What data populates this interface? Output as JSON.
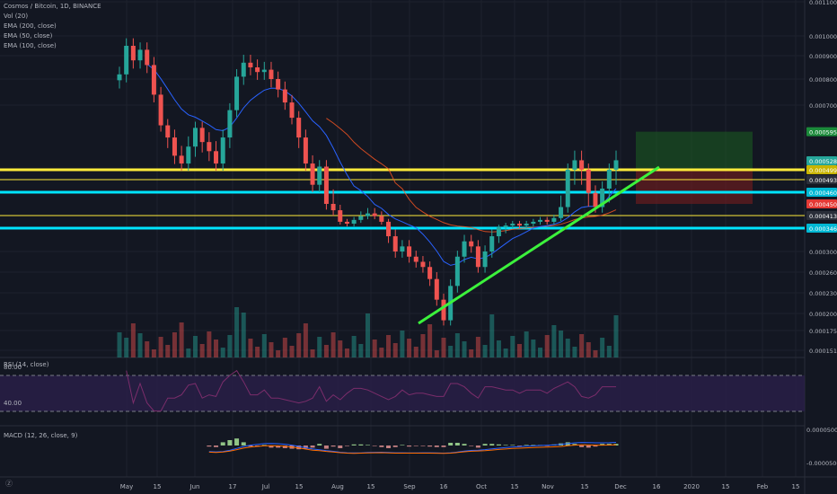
{
  "legend": {
    "title": "Cosmos / Bitcoin, 1D, BINANCE",
    "vol": "Vol (20)",
    "ema200": "EMA (200, close)",
    "ema50": "EMA (50, close)",
    "ema100": "EMA (100, close)"
  },
  "rsi_label": "RSI (14, close)",
  "macd_label": "MACD (12, 26, close, 9)",
  "colors": {
    "bg": "#131722",
    "grid": "#1e222d",
    "up": "#26a69a",
    "down": "#ef5350",
    "yellow": "#ffeb3b",
    "cyan": "#00e5ff",
    "green_line": "#3cf23c",
    "ema50": "#2962ff",
    "ema100": "#ff5722",
    "rsi_band": "#2a1f4a",
    "rsi_line": "#7b2d6b"
  },
  "chart_data": {
    "type": "candlestick",
    "symbol": "Cosmos / Bitcoin, 1D, BINANCE",
    "x_ticks": [
      "May",
      "15",
      "Jun",
      "17",
      "Jul",
      "15",
      "Aug",
      "15",
      "Sep",
      "16",
      "Oct",
      "15",
      "Nov",
      "15",
      "Dec",
      "16",
      "2020",
      "15",
      "Feb",
      "15"
    ],
    "y_ticks": [
      "0.0011000",
      "0.0010000",
      "0.0009000",
      "0.0008000",
      "0.0007000",
      "0.0003000",
      "0.0002600",
      "0.0002300",
      "0.0002000",
      "0.0001750",
      "0.0001510"
    ],
    "price_labels": [
      {
        "value": "0.0005950",
        "kind": "target"
      },
      {
        "value": "0.0005289",
        "kind": "last"
      },
      {
        "value": "0.0004998",
        "kind": "yellow"
      },
      {
        "value": "0.0004933",
        "kind": "plain"
      },
      {
        "value": "0.0004606",
        "kind": "cyan"
      },
      {
        "value": "0.0004500",
        "kind": "stop"
      },
      {
        "value": "0.0004132",
        "kind": "plain"
      },
      {
        "value": "0.0003460",
        "kind": "cyan"
      }
    ],
    "candles_close": [
      0.00082,
      0.00095,
      0.00088,
      0.00093,
      0.00086,
      0.00074,
      0.00062,
      0.00058,
      0.00054,
      0.00052,
      0.00056,
      0.00061,
      0.00057,
      0.00055,
      0.00052,
      0.00058,
      0.00068,
      0.00081,
      0.00087,
      0.00085,
      0.00083,
      0.00084,
      0.0008,
      0.00076,
      0.00071,
      0.00065,
      0.00058,
      0.00052,
      0.00048,
      0.00051,
      0.00045,
      0.00043,
      0.00038,
      0.00037,
      0.00039,
      0.00041,
      0.00042,
      0.00041,
      0.00038,
      0.00033,
      0.0003,
      0.00031,
      0.00029,
      0.00028,
      0.00027,
      0.00025,
      0.00022,
      0.00019,
      0.00024,
      0.00029,
      0.00032,
      0.00031,
      0.00027,
      0.0003,
      0.00033,
      0.00035,
      0.00036,
      0.00037,
      0.00036,
      0.00037,
      0.00038,
      0.00039,
      0.00038,
      0.0004,
      0.00044,
      0.0005,
      0.00053,
      0.0005,
      0.00046,
      0.00044,
      0.00047,
      0.0005,
      0.00053
    ],
    "horizontal_levels": [
      {
        "value": "0.0004998",
        "color": "yellow",
        "thick": true
      },
      {
        "value": "0.0004933",
        "color": "yellow",
        "thick": false
      },
      {
        "value": "0.0004606",
        "color": "cyan",
        "thick": true
      },
      {
        "value": "0.0004132",
        "color": "yellow",
        "thick": false
      },
      {
        "value": "0.0003460",
        "color": "cyan",
        "thick": true
      }
    ],
    "trendline": {
      "from": "Sep",
      "to": "Dec"
    },
    "position": {
      "entry": "0.0004998",
      "target": "0.0005950",
      "stop": "0.0004500"
    },
    "rsi": {
      "upper": "80.00",
      "lower": "40.00"
    },
    "macd_ticks": [
      "0.0000500",
      "-0.0000500"
    ]
  }
}
